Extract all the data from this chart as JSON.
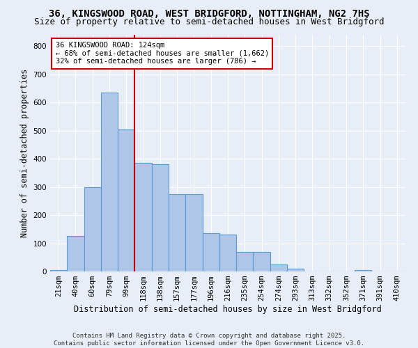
{
  "title1": "36, KINGSWOOD ROAD, WEST BRIDGFORD, NOTTINGHAM, NG2 7HS",
  "title2": "Size of property relative to semi-detached houses in West Bridgford",
  "xlabel": "Distribution of semi-detached houses by size in West Bridgford",
  "ylabel": "Number of semi-detached properties",
  "categories": [
    "21sqm",
    "40sqm",
    "60sqm",
    "79sqm",
    "99sqm",
    "118sqm",
    "138sqm",
    "157sqm",
    "177sqm",
    "196sqm",
    "216sqm",
    "235sqm",
    "254sqm",
    "274sqm",
    "293sqm",
    "313sqm",
    "332sqm",
    "352sqm",
    "371sqm",
    "391sqm",
    "410sqm"
  ],
  "values": [
    5,
    125,
    300,
    635,
    505,
    385,
    380,
    275,
    275,
    135,
    130,
    70,
    70,
    25,
    10,
    0,
    0,
    0,
    5,
    0,
    0
  ],
  "bar_color": "#aec6e8",
  "bar_edge_color": "#5b9bd5",
  "background_color": "#e8eef7",
  "grid_color": "#d0d8ea",
  "vline_color": "#cc0000",
  "annotation_text": "36 KINGSWOOD ROAD: 124sqm\n← 68% of semi-detached houses are smaller (1,662)\n32% of semi-detached houses are larger (786) →",
  "annotation_box_color": "#ffffff",
  "annotation_box_edge": "#cc0000",
  "footnote": "Contains HM Land Registry data © Crown copyright and database right 2025.\nContains public sector information licensed under the Open Government Licence v3.0.",
  "ylim": [
    0,
    840
  ],
  "yticks": [
    0,
    100,
    200,
    300,
    400,
    500,
    600,
    700,
    800
  ],
  "title_fontsize": 10,
  "subtitle_fontsize": 9,
  "axis_label_fontsize": 8.5,
  "tick_fontsize": 7.5,
  "footnote_fontsize": 6.5
}
